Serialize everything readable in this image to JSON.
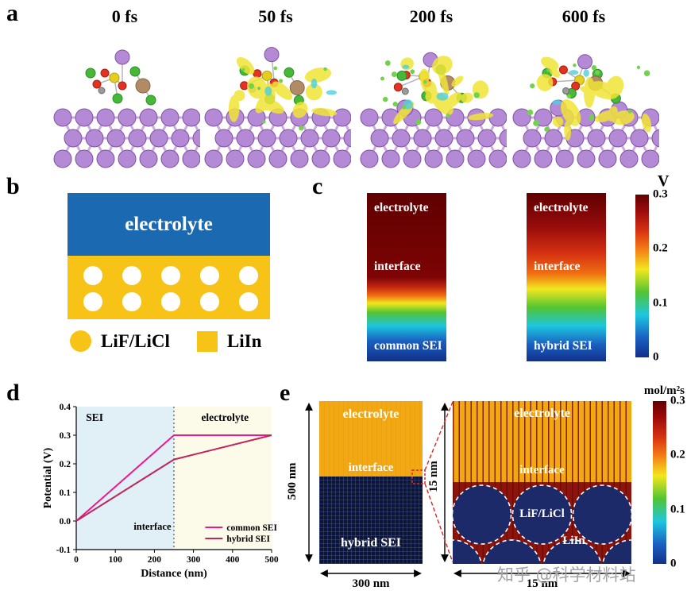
{
  "watermark": "知乎 @科学材料站",
  "panels": {
    "a": {
      "label": "a",
      "frames": [
        {
          "time_label": "0 fs",
          "isosurface_level": 0
        },
        {
          "time_label": "50 fs",
          "isosurface_level": 0.7
        },
        {
          "time_label": "200 fs",
          "isosurface_level": 0.85
        },
        {
          "time_label": "600 fs",
          "isosurface_level": 1
        }
      ],
      "colors": {
        "substrate": "#b48ad6",
        "isosurface": "#f0e437"
      }
    },
    "b": {
      "label": "b",
      "electrolyte_label": "electrolyte",
      "legend": [
        {
          "shape": "circle",
          "label": "LiF/LiCl"
        },
        {
          "shape": "square",
          "label": "LiIn"
        }
      ],
      "colors": {
        "electrolyte": "#1b69b1",
        "sei": "#f6c316",
        "particles": "#ffffff"
      }
    },
    "c": {
      "label": "c",
      "maps": [
        {
          "top_label": "electrolyte",
          "mid_label": "interface",
          "bottom_label": "common SEI",
          "stops": [
            [
              0,
              "#600000"
            ],
            [
              0.5,
              "#7d0404"
            ],
            [
              0.56,
              "#c42810"
            ],
            [
              0.61,
              "#ef7012"
            ],
            [
              0.655,
              "#f2e71e"
            ],
            [
              0.71,
              "#52c433"
            ],
            [
              0.79,
              "#1dc6de"
            ],
            [
              0.88,
              "#1a5fc0"
            ],
            [
              1,
              "#12308a"
            ]
          ]
        },
        {
          "top_label": "electrolyte",
          "mid_label": "interface",
          "bottom_label": "hybrid SEI",
          "stops": [
            [
              0,
              "#600000"
            ],
            [
              0.2,
              "#970b0b"
            ],
            [
              0.36,
              "#d63111"
            ],
            [
              0.48,
              "#ef7012"
            ],
            [
              0.57,
              "#f2e71e"
            ],
            [
              0.68,
              "#52c433"
            ],
            [
              0.79,
              "#1dc6de"
            ],
            [
              0.9,
              "#1a5fc0"
            ],
            [
              1,
              "#12308a"
            ]
          ]
        }
      ],
      "colorbar": {
        "title": "V",
        "ticks": [
          "0.3",
          "0.2",
          "0.1",
          "0"
        ],
        "stops": [
          [
            0,
            "#640000"
          ],
          [
            0.1,
            "#9b0b0b"
          ],
          [
            0.22,
            "#d63111"
          ],
          [
            0.34,
            "#f57f17"
          ],
          [
            0.46,
            "#f2e71e"
          ],
          [
            0.6,
            "#52c433"
          ],
          [
            0.74,
            "#1dc6de"
          ],
          [
            0.88,
            "#1a5fc0"
          ],
          [
            1,
            "#12308a"
          ]
        ]
      }
    },
    "d": {
      "label": "d"
    },
    "e": {
      "label": "e",
      "left": {
        "height_label": "500 nm",
        "width_label": "300 nm",
        "electrolyte_label": "electrolyte",
        "interface_label": "interface",
        "sei_label": "hybrid SEI",
        "colors": {
          "electrolyte": "#f2a812",
          "sei": "#0c1534"
        }
      },
      "right": {
        "height_label": "15 nm",
        "width_label": "15 nm",
        "electrolyte_label": "electrolyte",
        "interface_label": "interface",
        "particle_label": "LiF/LiCl",
        "matrix_label": "LiIn",
        "colors": {
          "electrolyte": "#f2a812",
          "matrix": "#8c140c",
          "particle": "#1c2a6a"
        }
      },
      "colorbar": {
        "title": "mol/m²s",
        "ticks": [
          "0.3",
          "0.2",
          "0.1",
          "0"
        ]
      }
    }
  },
  "chart_data": {
    "type": "line",
    "title": "",
    "xlabel": "Distance (nm)",
    "ylabel": "Potential (V)",
    "xlim": [
      0,
      500
    ],
    "ylim": [
      -0.1,
      0.4
    ],
    "xticks": [
      0,
      100,
      200,
      300,
      400,
      500
    ],
    "yticks": [
      -0.1,
      0,
      0.1,
      0.2,
      0.3,
      0.4
    ],
    "regions": [
      {
        "label": "SEI",
        "from": 0,
        "to": 250,
        "color": "#e1f0f7"
      },
      {
        "label": "electrolyte",
        "from": 250,
        "to": 500,
        "color": "#fcfae8"
      }
    ],
    "divider_x": 250,
    "annotations": [
      {
        "text": "interface",
        "x": 195,
        "y": -0.03
      }
    ],
    "series": [
      {
        "name": "common SEI",
        "color": "#f0168c",
        "x": [
          0,
          250,
          500
        ],
        "y": [
          0,
          0.3,
          0.3
        ]
      },
      {
        "name": "hybrid SEI",
        "color": "#c0265c",
        "x": [
          0,
          250,
          500
        ],
        "y": [
          0,
          0.215,
          0.3
        ]
      }
    ],
    "legend_position": "bottom-right",
    "grid": false
  }
}
